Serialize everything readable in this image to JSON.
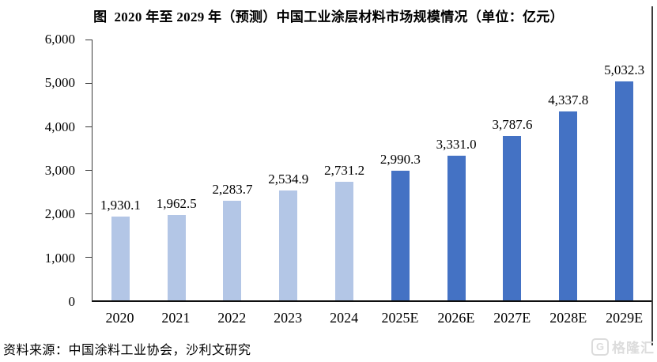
{
  "header": {
    "title": "图  2020 年至 2029 年（预测）中国工业涂层材料市场规模情况（单位：亿元）"
  },
  "chart_data": {
    "type": "bar",
    "title": "图 2020 年至 2029 年（预测）中国工业涂层材料市场规模情况",
    "unit": "亿元",
    "categories": [
      "2020",
      "2021",
      "2022",
      "2023",
      "2024",
      "2025E",
      "2026E",
      "2027E",
      "2028E",
      "2029E"
    ],
    "values": [
      1930.1,
      1962.5,
      2283.7,
      2534.9,
      2731.2,
      2990.3,
      3331.0,
      3787.6,
      4337.8,
      5032.3
    ],
    "value_labels": [
      "1,930.1",
      "1,962.5",
      "2,283.7",
      "2,534.9",
      "2,731.2",
      "2,990.3",
      "3,331.0",
      "3,787.6",
      "4,337.8",
      "5,032.3"
    ],
    "ylim": [
      0,
      6000
    ],
    "y_tick_step": 1000,
    "y_tick_labels": [
      "0",
      "1,000",
      "2,000",
      "3,000",
      "4,000",
      "5,000",
      "6,000"
    ],
    "grid": false,
    "legend_position": "none",
    "forecast_from_index": 5,
    "colors": {
      "historical_bar": "#b3c6e6",
      "forecast_bar": "#4472c4",
      "axis": "#3a3a3a"
    }
  },
  "footer": {
    "source": "资料来源：中国涂料工业协会，沙利文研究"
  },
  "watermark": {
    "logo_letter": "G",
    "text": "格隆汇",
    "color": "#dcdcdc"
  }
}
